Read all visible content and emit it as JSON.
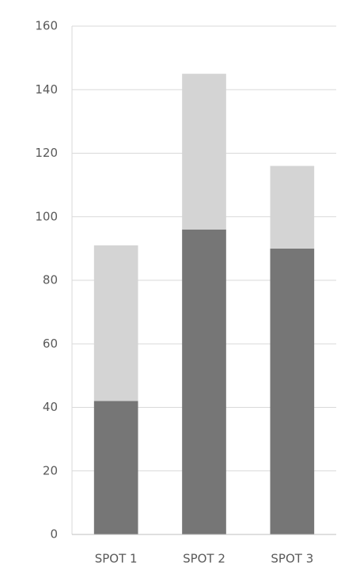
{
  "chart_data": {
    "type": "stacked_bar",
    "categories": [
      "SPOT 1",
      "SPOT 2",
      "SPOT 3"
    ],
    "series": [
      {
        "color": "#767676",
        "values": [
          42,
          96,
          90
        ]
      },
      {
        "color": "#d4d4d4",
        "values": [
          49,
          49,
          26
        ]
      }
    ],
    "ylim": [
      0,
      160
    ],
    "yticks": [
      0,
      20,
      40,
      60,
      80,
      100,
      120,
      140,
      160
    ],
    "grid": true
  }
}
